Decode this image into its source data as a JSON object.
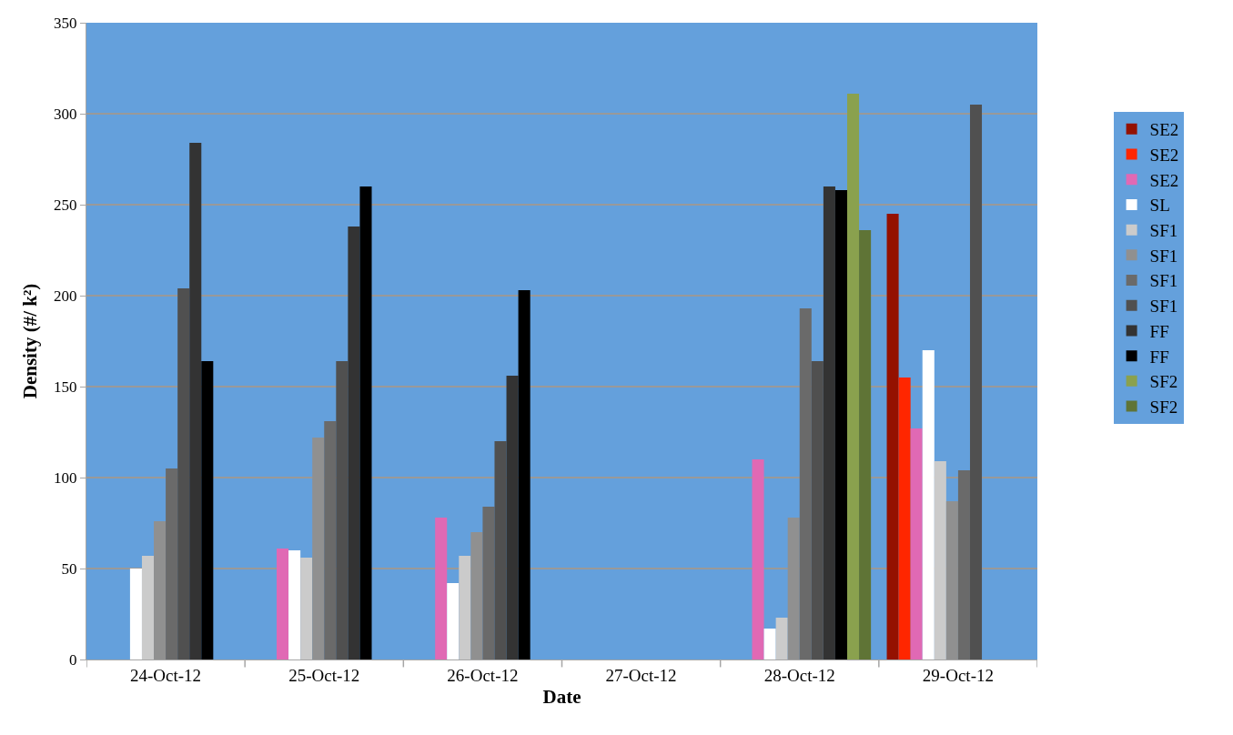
{
  "chart_data": {
    "type": "bar",
    "xlabel": "Date",
    "ylabel": "Density (#/ k²)",
    "categories": [
      "24-Oct-12",
      "25-Oct-12",
      "26-Oct-12",
      "27-Oct-12",
      "28-Oct-12",
      "29-Oct-12"
    ],
    "ylim": [
      0,
      350
    ],
    "yticks": [
      0,
      50,
      100,
      150,
      200,
      250,
      300,
      350
    ],
    "grid": "y",
    "legend": "right",
    "series": [
      {
        "name": "SE2",
        "color": "#941100",
        "values": [
          null,
          null,
          null,
          null,
          null,
          245
        ]
      },
      {
        "name": "SE2",
        "color": "#ff2600",
        "values": [
          null,
          null,
          null,
          null,
          null,
          155
        ]
      },
      {
        "name": "SE2",
        "color": "#e069b4",
        "values": [
          null,
          61,
          78,
          null,
          110,
          127
        ]
      },
      {
        "name": "SL",
        "color": "#ffffff",
        "values": [
          50,
          60,
          42,
          null,
          17,
          170
        ]
      },
      {
        "name": "SF1",
        "color": "#cbcbcb",
        "values": [
          57,
          56,
          57,
          null,
          23,
          109
        ]
      },
      {
        "name": "SF1",
        "color": "#909090",
        "values": [
          76,
          122,
          70,
          null,
          78,
          87
        ]
      },
      {
        "name": "SF1",
        "color": "#6a6a6a",
        "values": [
          105,
          131,
          84,
          null,
          193,
          104
        ]
      },
      {
        "name": "SF1",
        "color": "#505050",
        "values": [
          204,
          164,
          120,
          null,
          164,
          305
        ]
      },
      {
        "name": "FF",
        "color": "#333333",
        "values": [
          284,
          238,
          156,
          null,
          260,
          null
        ]
      },
      {
        "name": "FF",
        "color": "#000000",
        "values": [
          164,
          260,
          203,
          null,
          258,
          null
        ]
      },
      {
        "name": "SF2",
        "color": "#8aa14e",
        "values": [
          null,
          null,
          null,
          null,
          311,
          null
        ]
      },
      {
        "name": "SF2",
        "color": "#5f7436",
        "values": [
          null,
          null,
          null,
          null,
          236,
          null
        ]
      }
    ]
  }
}
